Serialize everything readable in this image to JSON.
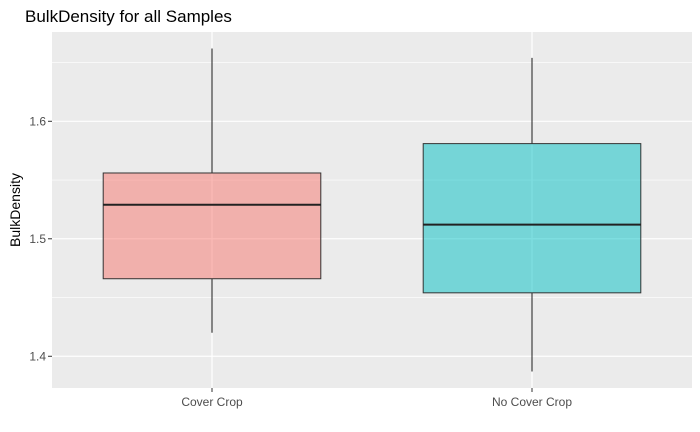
{
  "chart_data": {
    "type": "boxplot",
    "title": "BulkDensity for all Samples",
    "xlabel": "",
    "ylabel": "BulkDensity",
    "ylim": [
      1.373,
      1.676
    ],
    "yticks": [
      1.4,
      1.5,
      1.6
    ],
    "ytick_labels": [
      "1.4",
      "1.5",
      "1.6"
    ],
    "grid": true,
    "legend": "none",
    "categories": [
      "Cover Crop",
      "No Cover Crop"
    ],
    "boxes": [
      {
        "category": "Cover Crop",
        "min": 1.42,
        "q1": 1.466,
        "median": 1.529,
        "q3": 1.556,
        "max": 1.662,
        "color": "#F8766D"
      },
      {
        "category": "No Cover Crop",
        "min": 1.387,
        "q1": 1.454,
        "median": 1.512,
        "q3": 1.581,
        "max": 1.654,
        "color": "#00BFC4"
      }
    ],
    "panel_color": "#EBEBEB",
    "grid_color": "#FFFFFF"
  }
}
